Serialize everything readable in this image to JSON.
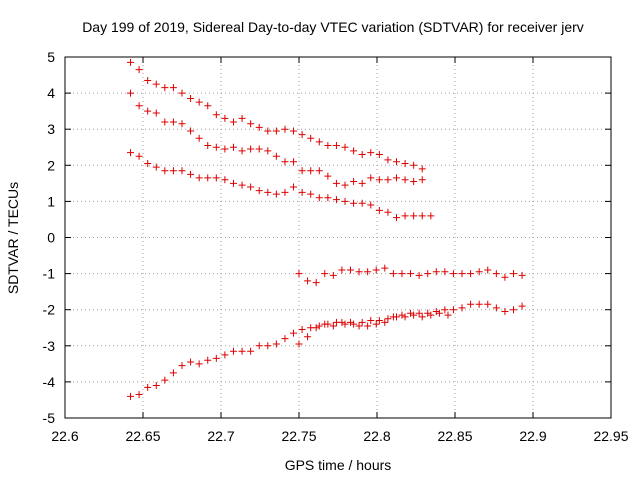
{
  "chart_data": {
    "type": "scatter",
    "title": "Day 199 of 2019, Sidereal Day-to-day VTEC variation (SDTVAR) for receiver jerv",
    "xlabel": "GPS time / hours",
    "ylabel": "SDTVAR / TECUs",
    "xlim": [
      22.6,
      22.95
    ],
    "ylim": [
      -5,
      5
    ],
    "xticks": [
      22.6,
      22.65,
      22.7,
      22.75,
      22.8,
      22.85,
      22.9,
      22.95
    ],
    "xtick_labels": [
      "22.6",
      "22.65",
      "22.7",
      "22.75",
      "22.8",
      "22.85",
      "22.9",
      "22.95"
    ],
    "yticks": [
      -5,
      -4,
      -3,
      -2,
      -1,
      0,
      1,
      2,
      3,
      4,
      5
    ],
    "ytick_labels": [
      "-5",
      "-4",
      "-3",
      "-2",
      "-1",
      "0",
      "1",
      "2",
      "3",
      "4",
      "5"
    ],
    "marker": "+",
    "color": "#dd0000",
    "series": [
      {
        "name": "s1",
        "x": [
          22.642,
          22.6475,
          22.653,
          22.6585,
          22.664,
          22.6695,
          22.675,
          22.6805,
          22.686,
          22.6915,
          22.697,
          22.7025,
          22.708,
          22.7135,
          22.719,
          22.7245,
          22.73,
          22.7355,
          22.741,
          22.7465,
          22.752,
          22.7575,
          22.763,
          22.7685,
          22.774,
          22.7795,
          22.785,
          22.7905,
          22.796,
          22.8015,
          22.807,
          22.8125,
          22.818,
          22.8235,
          22.829,
          22.8345,
          22.84,
          22.8455,
          22.851,
          22.8565,
          22.862,
          22.8675,
          22.873,
          22.8785,
          22.884,
          22.8895,
          22.895,
          22.9005,
          22.906,
          22.9115,
          22.917,
          22.9225
        ],
        "values": [
          4.85,
          4.65,
          4.35,
          4.25,
          4.15,
          4.15,
          4.0,
          3.85,
          3.75,
          3.65,
          3.4,
          3.3,
          3.2,
          3.3,
          3.15,
          3.05,
          2.95,
          2.95,
          3.0,
          2.95,
          2.85,
          2.75,
          2.65,
          2.55,
          2.55,
          2.5,
          2.4,
          2.3,
          2.35,
          2.3,
          2.15,
          2.1,
          2.05,
          2.0,
          1.9,
          null,
          null,
          null,
          null,
          null,
          null,
          null,
          null,
          null,
          null,
          null,
          null,
          null,
          null,
          null,
          null,
          null
        ]
      },
      {
        "name": "s2",
        "x": [
          22.642,
          22.6475,
          22.653,
          22.6585,
          22.664,
          22.6695,
          22.675,
          22.6805,
          22.686,
          22.6915,
          22.697,
          22.7025,
          22.708,
          22.7135,
          22.719,
          22.7245,
          22.73,
          22.7355,
          22.741,
          22.7465,
          22.752,
          22.7575,
          22.763,
          22.7685,
          22.774,
          22.7795,
          22.785,
          22.7905,
          22.796,
          22.8015,
          22.807,
          22.8125,
          22.818,
          22.8235,
          22.829,
          22.8345,
          22.84,
          22.8455,
          22.851,
          22.8565,
          22.862,
          22.8675,
          22.873,
          22.8785,
          22.884,
          22.8895,
          22.895,
          22.9005,
          22.906,
          22.9115,
          22.917,
          22.9225
        ],
        "values": [
          4.0,
          3.65,
          3.5,
          3.45,
          3.2,
          3.2,
          3.15,
          2.95,
          2.75,
          2.55,
          2.5,
          2.45,
          2.5,
          2.4,
          2.45,
          2.45,
          2.4,
          2.25,
          2.1,
          2.1,
          1.85,
          1.85,
          1.85,
          1.7,
          1.5,
          1.45,
          1.55,
          1.5,
          1.65,
          1.6,
          1.6,
          1.65,
          1.6,
          1.55,
          1.6,
          null,
          null,
          null,
          null,
          null,
          null,
          null,
          null,
          null,
          null,
          null,
          null,
          null,
          null,
          null,
          null,
          null
        ]
      },
      {
        "name": "s3",
        "x": [
          22.642,
          22.6475,
          22.653,
          22.6585,
          22.664,
          22.6695,
          22.675,
          22.6805,
          22.686,
          22.6915,
          22.697,
          22.7025,
          22.708,
          22.7135,
          22.719,
          22.7245,
          22.73,
          22.7355,
          22.741,
          22.7465,
          22.752,
          22.7575,
          22.763,
          22.7685,
          22.774,
          22.7795,
          22.785,
          22.7905,
          22.796,
          22.8015,
          22.807,
          22.8125,
          22.818,
          22.8235,
          22.829,
          22.8345,
          22.84,
          22.8455,
          22.851,
          22.8565,
          22.862,
          22.8675,
          22.873,
          22.8785,
          22.884,
          22.8895,
          22.895,
          22.9005,
          22.906,
          22.9115,
          22.917,
          22.9225
        ],
        "values": [
          2.35,
          2.25,
          2.05,
          1.95,
          1.85,
          1.85,
          1.85,
          1.75,
          1.65,
          1.65,
          1.65,
          1.6,
          1.5,
          1.45,
          1.4,
          1.3,
          1.25,
          1.2,
          1.25,
          1.4,
          1.25,
          1.2,
          1.1,
          1.1,
          1.05,
          1.0,
          0.95,
          0.95,
          0.9,
          0.75,
          0.7,
          0.55,
          0.6,
          0.6,
          0.6,
          0.6,
          null,
          null,
          null,
          null,
          null,
          null,
          null,
          null,
          null,
          null,
          null,
          null,
          null,
          null,
          null,
          null
        ]
      },
      {
        "name": "s4",
        "x": [
          22.75,
          22.7555,
          22.761,
          22.7665,
          22.772,
          22.7775,
          22.783,
          22.7885,
          22.794,
          22.7995,
          22.805,
          22.8105,
          22.816,
          22.8215,
          22.827,
          22.8325,
          22.838,
          22.8435,
          22.849,
          22.8545,
          22.86,
          22.8655,
          22.871,
          22.8765,
          22.882,
          22.8875,
          22.893,
          22.8985,
          22.904,
          22.9095,
          22.915,
          22.9205,
          22.925
        ],
        "values": [
          -1.0,
          -1.2,
          -1.25,
          -1.0,
          -1.05,
          -0.9,
          -0.9,
          -0.95,
          -0.95,
          -0.9,
          -0.85,
          -1.0,
          -1.0,
          -1.0,
          -1.05,
          -1.0,
          -0.95,
          -0.95,
          -1.0,
          -1.0,
          -1.0,
          -0.95,
          -0.9,
          -1.0,
          -1.1,
          -1.0,
          -1.05,
          null,
          null,
          null,
          null,
          null,
          null
        ]
      },
      {
        "name": "s5",
        "x": [
          22.75,
          22.7555,
          22.761,
          22.7665,
          22.772,
          22.7775,
          22.783,
          22.7885,
          22.794,
          22.7995,
          22.805,
          22.8105,
          22.816,
          22.8215,
          22.827,
          22.8325,
          22.838,
          22.8435,
          22.849,
          22.8545,
          22.86,
          22.8655,
          22.871,
          22.8765,
          22.882,
          22.8875,
          22.893,
          22.8985,
          22.904,
          22.9095,
          22.915,
          22.9205,
          22.925
        ],
        "values": [
          -2.95,
          -2.75,
          -2.5,
          -2.4,
          -2.45,
          -2.35,
          -2.35,
          -2.45,
          -2.45,
          -2.4,
          -2.35,
          -2.2,
          -2.15,
          -2.1,
          -2.1,
          -2.1,
          -2.05,
          -2.0,
          -2.0,
          -1.95,
          -1.85,
          -1.85,
          -1.85,
          -1.95,
          -2.05,
          -2.0,
          -1.9,
          null,
          null,
          null,
          null,
          null,
          null
        ]
      },
      {
        "name": "s6",
        "x": [
          22.642,
          22.6475,
          22.653,
          22.6585,
          22.664,
          22.6695,
          22.675,
          22.6805,
          22.686,
          22.6915,
          22.697,
          22.7025,
          22.708,
          22.7135,
          22.719,
          22.7245,
          22.73,
          22.7355,
          22.741,
          22.7465,
          22.752,
          22.7575,
          22.763,
          22.7685,
          22.774,
          22.7795,
          22.785,
          22.7905,
          22.796,
          22.8015,
          22.807,
          22.8125,
          22.818,
          22.8235,
          22.829,
          22.8345,
          22.84,
          22.8455,
          22.851,
          22.8565,
          22.862,
          22.8675,
          22.873,
          22.8785,
          22.884,
          22.8895,
          22.895,
          22.9005,
          22.906,
          22.9115,
          22.917,
          22.9225
        ],
        "values": [
          -4.4,
          -4.35,
          -4.15,
          -4.1,
          -3.95,
          -3.75,
          -3.55,
          -3.45,
          -3.5,
          -3.4,
          -3.35,
          -3.25,
          -3.15,
          -3.15,
          -3.15,
          -3.0,
          -3.0,
          -2.95,
          -2.8,
          -2.65,
          -2.55,
          -2.5,
          -2.45,
          -2.4,
          -2.35,
          -2.4,
          -2.4,
          -2.35,
          -2.3,
          -2.3,
          -2.25,
          -2.2,
          -2.2,
          -2.15,
          -2.2,
          -2.15,
          -2.1,
          -2.15,
          null,
          null,
          null,
          null,
          null,
          null,
          null,
          null,
          null,
          null,
          null,
          null,
          null,
          null
        ]
      }
    ]
  }
}
